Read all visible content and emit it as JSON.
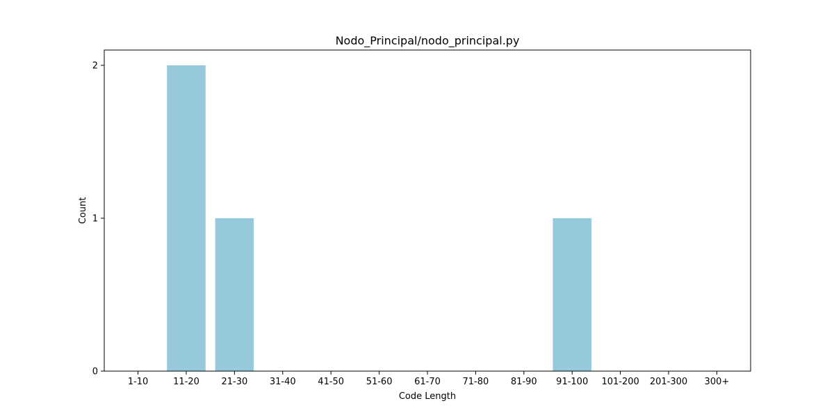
{
  "chart_data": {
    "type": "bar",
    "title": "Nodo_Principal/nodo_principal.py",
    "xlabel": "Code Length",
    "ylabel": "Count",
    "categories": [
      "1-10",
      "11-20",
      "21-30",
      "31-40",
      "41-50",
      "51-60",
      "61-70",
      "71-80",
      "81-90",
      "91-100",
      "101-200",
      "201-300",
      "300+"
    ],
    "values": [
      0,
      2,
      1,
      0,
      0,
      0,
      0,
      0,
      0,
      1,
      0,
      0,
      0
    ],
    "ylim": [
      0,
      2.1
    ],
    "yticks": [
      0,
      1,
      2
    ],
    "bar_color": "#96c9dc",
    "grid": false,
    "legend": "none"
  }
}
